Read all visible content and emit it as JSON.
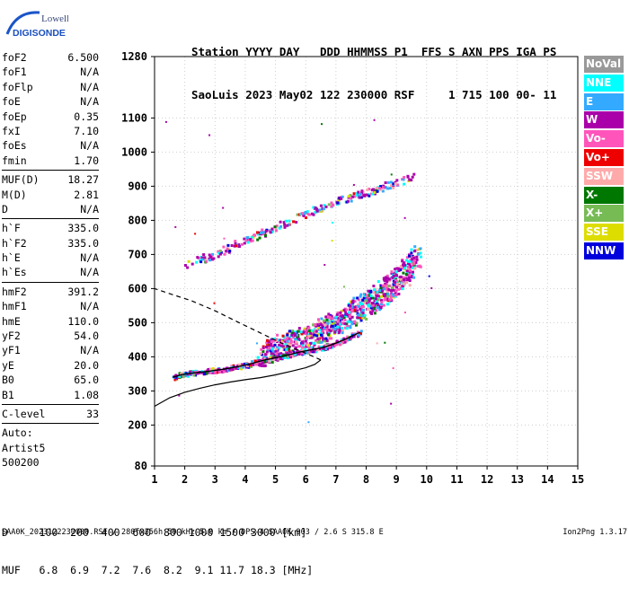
{
  "logo": {
    "top": "Lowell",
    "bottom": "DIGISONDE"
  },
  "header": {
    "line1": "Station YYYY DAY   DDD HHMMSS P1  FFS S AXN PPS IGA PS",
    "line2": "SaoLuis 2023 May02 122 230000 RSF     1 715 100 00- 11"
  },
  "params": [
    [
      {
        "k": "foF2",
        "v": "6.500"
      },
      {
        "k": "foF1",
        "v": "N/A"
      },
      {
        "k": "foFlp",
        "v": "N/A"
      },
      {
        "k": "foE",
        "v": "N/A"
      },
      {
        "k": "foEp",
        "v": "0.35"
      },
      {
        "k": "fxI",
        "v": "7.10"
      },
      {
        "k": "foEs",
        "v": "N/A"
      },
      {
        "k": "fmin",
        "v": "1.70"
      }
    ],
    [
      {
        "k": "MUF(D)",
        "v": "18.27"
      },
      {
        "k": "M(D)",
        "v": "2.81"
      },
      {
        "k": "D",
        "v": "N/A"
      }
    ],
    [
      {
        "k": "h`F",
        "v": "335.0"
      },
      {
        "k": "h`F2",
        "v": "335.0"
      },
      {
        "k": "h`E",
        "v": "N/A"
      },
      {
        "k": "h`Es",
        "v": "N/A"
      }
    ],
    [
      {
        "k": "hmF2",
        "v": "391.2"
      },
      {
        "k": "hmF1",
        "v": "N/A"
      },
      {
        "k": "hmE",
        "v": "110.0"
      },
      {
        "k": "yF2",
        "v": "54.0"
      },
      {
        "k": "yF1",
        "v": "N/A"
      },
      {
        "k": "yE",
        "v": "20.0"
      },
      {
        "k": "B0",
        "v": "65.0"
      },
      {
        "k": "B1",
        "v": "1.08"
      }
    ],
    [
      {
        "k": "C-level",
        "v": "33"
      }
    ]
  ],
  "auto": [
    "Auto:",
    "Artist5",
    "500200"
  ],
  "legend": [
    {
      "label": "NoVal",
      "color": "#999999"
    },
    {
      "label": "NNE",
      "color": "#00ffff"
    },
    {
      "label": "E",
      "color": "#33aaff"
    },
    {
      "label": "W",
      "color": "#aa00aa"
    },
    {
      "label": "Vo-",
      "color": "#ff55bb"
    },
    {
      "label": "Vo+",
      "color": "#ee0000"
    },
    {
      "label": "SSW",
      "color": "#ffaaaa"
    },
    {
      "label": "X-",
      "color": "#007700"
    },
    {
      "label": "X+",
      "color": "#77bb55"
    },
    {
      "label": "SSE",
      "color": "#dddd00"
    },
    {
      "label": "NNW",
      "color": "#0000dd"
    }
  ],
  "bottom": {
    "row1": "D     100  200  400  600  800 1000 1500 3000 [km]",
    "row2": "MUF   6.8  6.9  7.2  7.6  8.2  9.1 11.7 18.3 [MHz]"
  },
  "footer": {
    "left": "SAA0K_2023122230000.RSF / 280fx256h 50 kHz 5.0 km / DPS-4 SAA0K 903 / 2.6 S 315.8 E",
    "right": "Ion2Png 1.3.17"
  },
  "chart_data": {
    "type": "scatter",
    "xlim": [
      1,
      15
    ],
    "ylim": [
      80,
      1280
    ],
    "xticks": [
      "1",
      "2",
      "3",
      "4",
      "5",
      "6",
      "7",
      "8",
      "9",
      "10",
      "11",
      "12",
      "13",
      "14",
      "15"
    ],
    "yticks": [
      {
        "v": 80,
        "label": "80"
      },
      {
        "v": 200,
        "label": "200"
      },
      {
        "v": 300,
        "label": "300"
      },
      {
        "v": 400,
        "label": "400"
      },
      {
        "v": 500,
        "label": "500"
      },
      {
        "v": 600,
        "label": "600"
      },
      {
        "v": 700,
        "label": "700"
      },
      {
        "v": 800,
        "label": "800"
      },
      {
        "v": 900,
        "label": "900"
      },
      {
        "v": 1000,
        "label": "1000"
      },
      {
        "v": 1100,
        "label": "1100"
      },
      {
        "v": 1280,
        "label": "1280"
      }
    ],
    "grid": true,
    "profile_solid": [
      [
        1.0,
        255
      ],
      [
        1.5,
        280
      ],
      [
        2.0,
        296
      ],
      [
        2.5,
        308
      ],
      [
        3.0,
        318
      ],
      [
        3.5,
        326
      ],
      [
        4.0,
        333
      ],
      [
        4.5,
        339
      ],
      [
        5.0,
        347
      ],
      [
        5.5,
        357
      ],
      [
        6.0,
        368
      ],
      [
        6.3,
        378
      ],
      [
        6.5,
        391
      ]
    ],
    "profile_dashed": [
      [
        6.5,
        391
      ],
      [
        6.2,
        403
      ],
      [
        5.8,
        418
      ],
      [
        5.2,
        440
      ],
      [
        4.5,
        470
      ],
      [
        3.8,
        500
      ],
      [
        3.0,
        535
      ],
      [
        2.2,
        565
      ],
      [
        1.5,
        585
      ],
      [
        1.0,
        600
      ]
    ],
    "trace": [
      [
        1.6,
        340
      ],
      [
        1.9,
        348
      ],
      [
        2.3,
        353
      ],
      [
        2.8,
        358
      ],
      [
        3.3,
        364
      ],
      [
        3.8,
        372
      ],
      [
        4.2,
        380
      ],
      [
        4.6,
        390
      ],
      [
        5.0,
        397
      ],
      [
        5.4,
        405
      ],
      [
        5.8,
        414
      ],
      [
        6.2,
        421
      ],
      [
        6.6,
        428
      ],
      [
        7.0,
        440
      ],
      [
        7.4,
        455
      ],
      [
        7.8,
        472
      ]
    ],
    "echo_band": [
      [
        4.5,
        395
      ],
      [
        5.0,
        415
      ],
      [
        5.5,
        430
      ],
      [
        6.0,
        445
      ],
      [
        6.5,
        465
      ],
      [
        7.0,
        490
      ],
      [
        7.5,
        515
      ],
      [
        8.0,
        545
      ],
      [
        8.5,
        575
      ],
      [
        9.0,
        610
      ],
      [
        9.4,
        650
      ],
      [
        9.7,
        695
      ]
    ],
    "multihop_band": [
      [
        2.0,
        670
      ],
      [
        3.0,
        700
      ],
      [
        4.0,
        740
      ],
      [
        5.0,
        780
      ],
      [
        6.0,
        820
      ],
      [
        7.0,
        855
      ],
      [
        8.0,
        880
      ],
      [
        9.0,
        910
      ],
      [
        9.5,
        930
      ]
    ]
  }
}
